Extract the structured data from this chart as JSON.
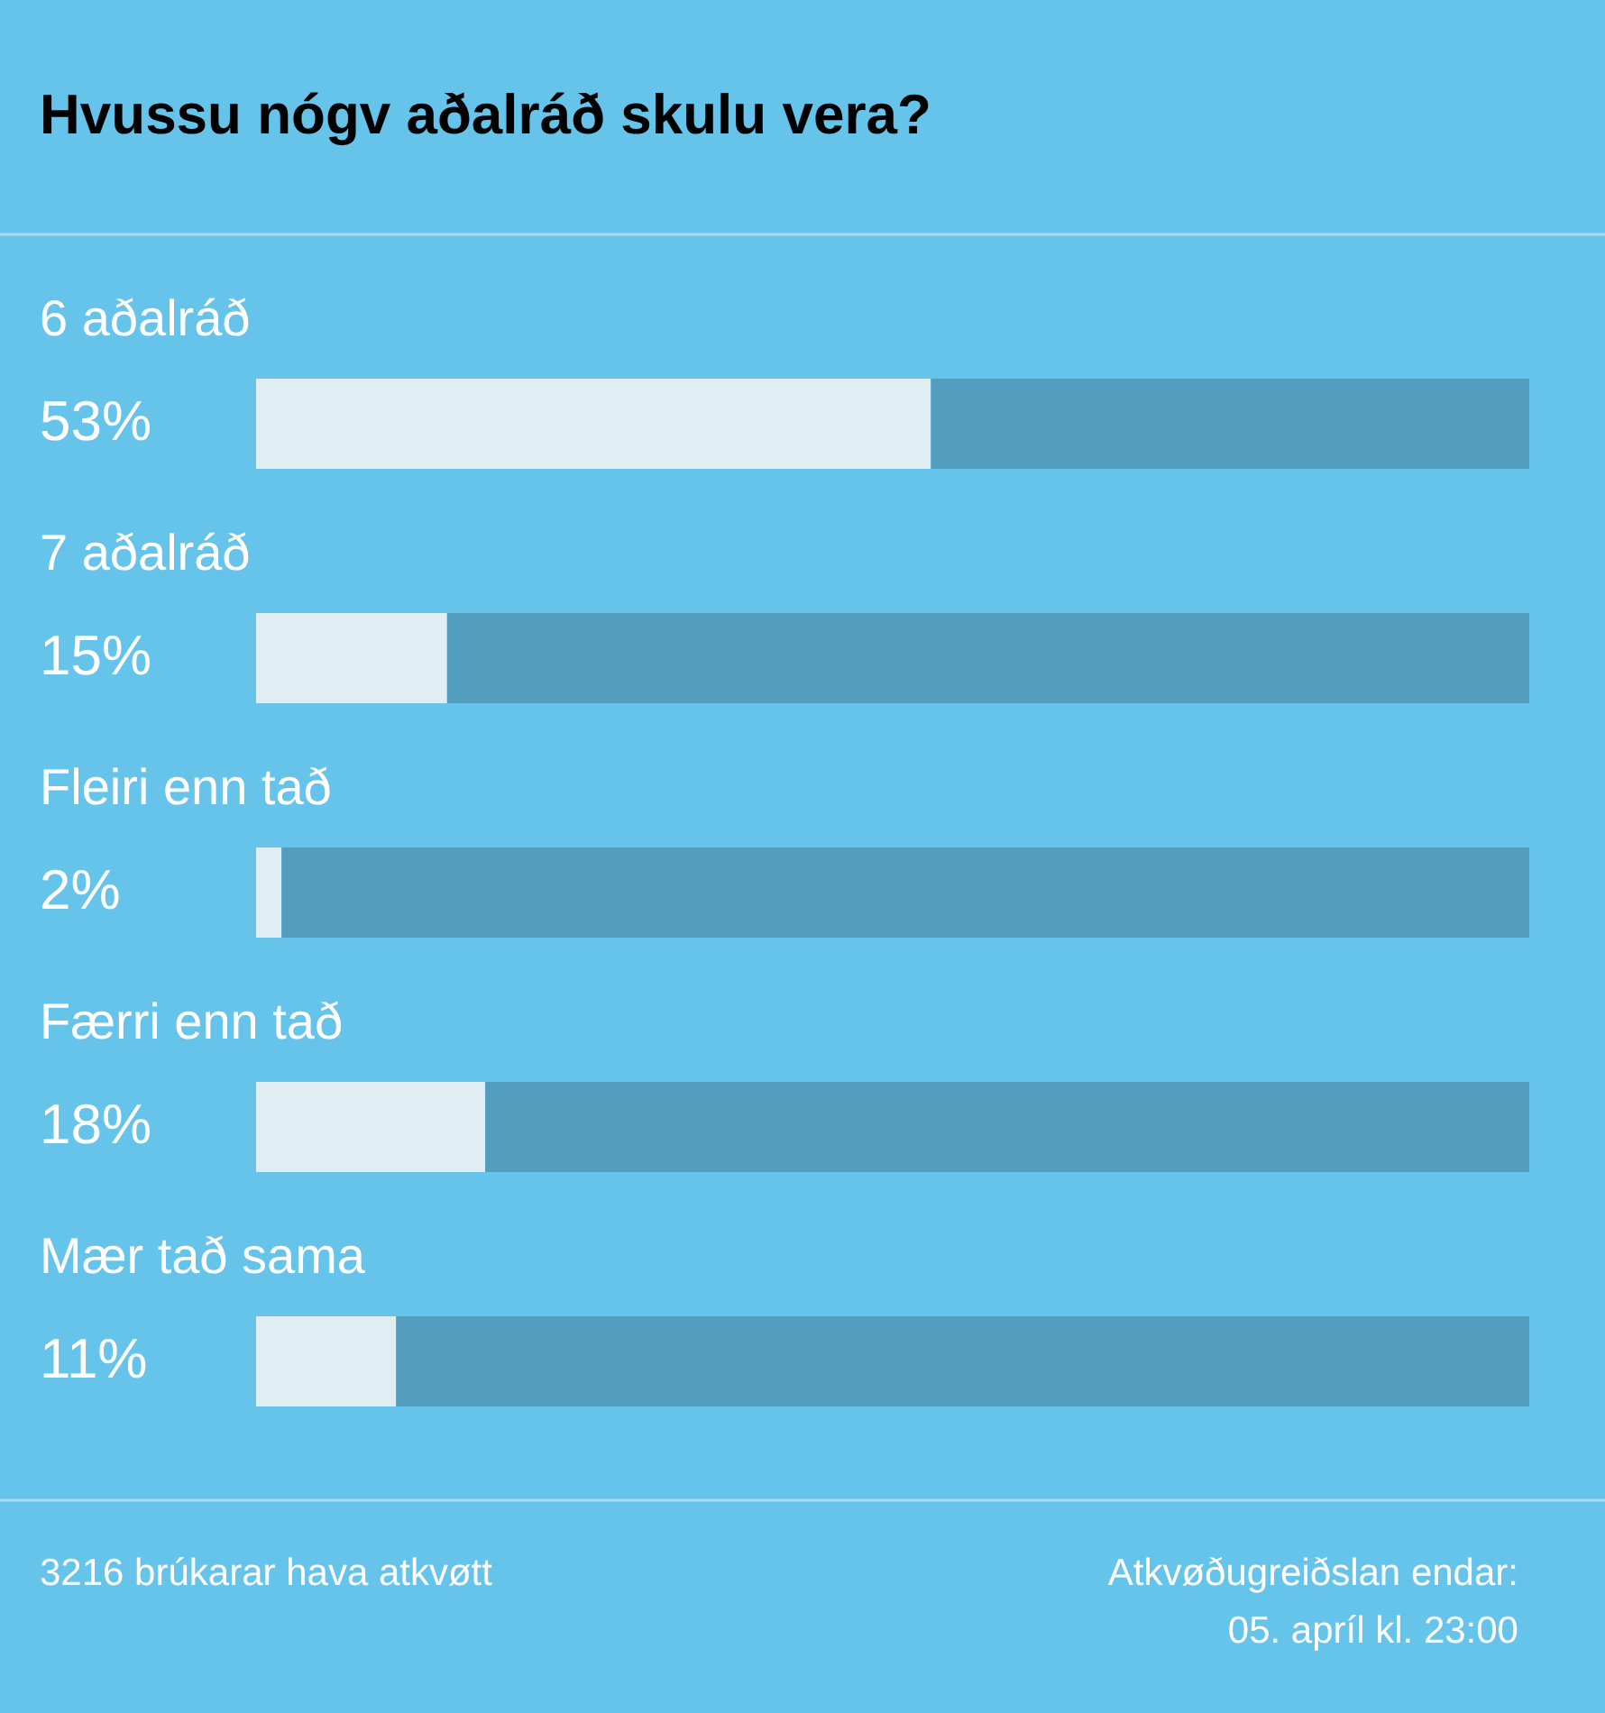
{
  "chart_data": {
    "type": "bar",
    "orientation": "horizontal",
    "stacked": true,
    "title": "Hvussu nógv aðalráð skulu vera?",
    "categories": [
      "6 aðalráð",
      "7 aðalráð",
      "Fleiri enn tað",
      "Færri enn tað",
      "Mær tað sama"
    ],
    "series": [
      {
        "color": "#e0eef4",
        "values": [
          53,
          15,
          2,
          18,
          11
        ],
        "value_labels": [
          "53%",
          "15%",
          "2%",
          "18%",
          "11%"
        ]
      },
      {
        "color": "#539dbf",
        "values": [
          47,
          85,
          98,
          82,
          89
        ]
      }
    ],
    "xlim": [
      0,
      100
    ],
    "tick_labels": false,
    "legend": false,
    "annotations": [
      "3216 brúkarar hava atkvøtt",
      "Atkvøðugreiðslan endar:",
      "05. apríl kl. 23:00"
    ]
  }
}
